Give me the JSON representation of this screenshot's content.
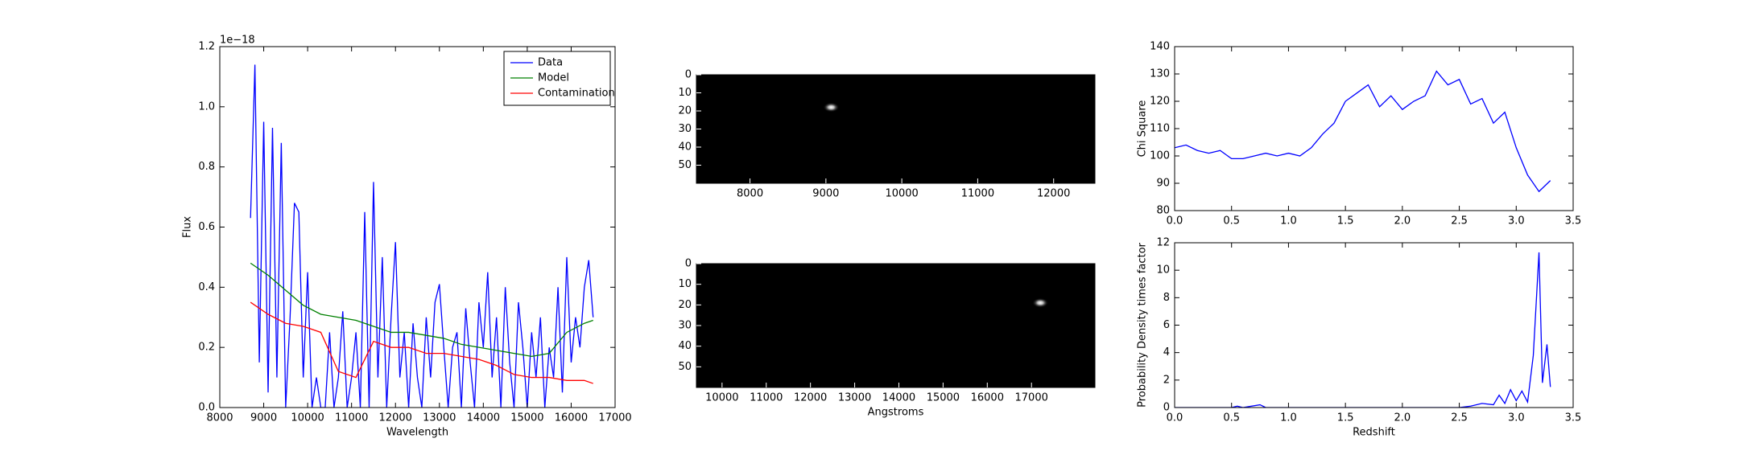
{
  "chart_data": [
    {
      "type": "line",
      "xlabel": "Wavelength",
      "ylabel": "Flux",
      "y_offset_label": "1e−18",
      "xlim": [
        8000,
        17000
      ],
      "ylim": [
        0,
        1.2
      ],
      "xticks": [
        8000,
        9000,
        10000,
        11000,
        12000,
        13000,
        14000,
        15000,
        16000,
        17000
      ],
      "yticks": [
        {
          "value": 0,
          "label": "0.0"
        },
        0.2,
        0.4,
        0.6,
        0.8,
        {
          "value": 1,
          "label": "1.0"
        },
        1.2
      ],
      "legend": "upper right",
      "series": [
        {
          "name": "Data",
          "color": "#0000ff",
          "x": [
            8700,
            8800,
            8900,
            9000,
            9100,
            9200,
            9300,
            9400,
            9500,
            9600,
            9700,
            9800,
            9900,
            10000,
            10100,
            10200,
            10300,
            10400,
            10500,
            10600,
            10700,
            10800,
            10900,
            11000,
            11100,
            11200,
            11300,
            11400,
            11500,
            11600,
            11700,
            11800,
            11900,
            12000,
            12100,
            12200,
            12300,
            12400,
            12500,
            12600,
            12700,
            12800,
            12900,
            13000,
            13100,
            13200,
            13300,
            13400,
            13500,
            13600,
            13700,
            13800,
            13900,
            14000,
            14100,
            14200,
            14300,
            14400,
            14500,
            14600,
            14700,
            14800,
            14900,
            15000,
            15100,
            15200,
            15300,
            15400,
            15500,
            15600,
            15700,
            15800,
            15900,
            16000,
            16100,
            16200,
            16300,
            16400,
            16500
          ],
          "values": [
            0.63,
            1.14,
            0.15,
            0.95,
            0.05,
            0.93,
            0.1,
            0.88,
            0,
            0.3,
            0.68,
            0.65,
            0.1,
            0.45,
            0,
            0.1,
            0,
            0,
            0.25,
            0,
            0.1,
            0.32,
            0,
            0.1,
            0.25,
            0,
            0.65,
            0,
            0.75,
            0.1,
            0.5,
            0,
            0.3,
            0.55,
            0.1,
            0.25,
            0,
            0.28,
            0.1,
            0,
            0.3,
            0.1,
            0.35,
            0.41,
            0.2,
            0,
            0.2,
            0.25,
            0,
            0.33,
            0.15,
            0,
            0.35,
            0.2,
            0.45,
            0.1,
            0.3,
            0,
            0.4,
            0.15,
            0,
            0.35,
            0.2,
            0,
            0.25,
            0.1,
            0.3,
            0,
            0.2,
            0.1,
            0.4,
            0.05,
            0.5,
            0.15,
            0.3,
            0.2,
            0.4,
            0.49,
            0.3
          ]
        },
        {
          "name": "Model",
          "color": "#008000",
          "x": [
            8700,
            9100,
            9500,
            9900,
            10300,
            10700,
            11100,
            11500,
            11900,
            12300,
            12700,
            13100,
            13500,
            13900,
            14300,
            14700,
            15100,
            15500,
            15900,
            16300,
            16500
          ],
          "values": [
            0.48,
            0.44,
            0.39,
            0.34,
            0.31,
            0.3,
            0.29,
            0.27,
            0.25,
            0.25,
            0.24,
            0.23,
            0.21,
            0.2,
            0.19,
            0.18,
            0.17,
            0.18,
            0.25,
            0.28,
            0.29
          ]
        },
        {
          "name": "Contamination",
          "color": "#ff0000",
          "x": [
            8700,
            9100,
            9500,
            9900,
            10300,
            10700,
            11100,
            11500,
            11900,
            12300,
            12700,
            13100,
            13500,
            13900,
            14300,
            14700,
            15100,
            15500,
            15900,
            16300,
            16500
          ],
          "values": [
            0.35,
            0.31,
            0.28,
            0.27,
            0.25,
            0.12,
            0.1,
            0.22,
            0.2,
            0.2,
            0.18,
            0.18,
            0.17,
            0.16,
            0.14,
            0.11,
            0.1,
            0.1,
            0.09,
            0.09,
            0.08
          ]
        }
      ]
    },
    {
      "type": "image",
      "xlim": [
        7294,
        12544
      ],
      "ylim": [
        60,
        0
      ],
      "xticks": [
        8000,
        9000,
        10000,
        11000,
        12000
      ],
      "yticks": [
        0,
        10,
        20,
        30,
        40,
        50
      ],
      "sources": [
        {
          "x": 9070,
          "y": 18
        }
      ]
    },
    {
      "type": "image",
      "xlabel": "Angstroms",
      "xlim": [
        9420,
        18435
      ],
      "ylim": [
        60,
        0
      ],
      "xticks": [
        10000,
        11000,
        12000,
        13000,
        14000,
        15000,
        16000,
        17000
      ],
      "yticks": [
        0,
        10,
        20,
        30,
        40,
        50
      ],
      "sources": [
        {
          "x": 17200,
          "y": 19
        }
      ]
    },
    {
      "type": "line",
      "ylabel": "Chi Square",
      "xlim": [
        0,
        3.5
      ],
      "ylim": [
        80,
        140
      ],
      "xticks": [
        {
          "value": 0,
          "label": "0.0"
        },
        0.5,
        {
          "value": 1,
          "label": "1.0"
        },
        1.5,
        {
          "value": 2,
          "label": "2.0"
        },
        2.5,
        {
          "value": 3,
          "label": "3.0"
        },
        3.5
      ],
      "yticks": [
        80,
        90,
        100,
        110,
        120,
        130,
        140
      ],
      "series": [
        {
          "color": "#0000ff",
          "x": [
            0,
            0.1,
            0.2,
            0.3,
            0.4,
            0.5,
            0.6,
            0.7,
            0.8,
            0.9,
            1.0,
            1.1,
            1.2,
            1.3,
            1.4,
            1.5,
            1.6,
            1.7,
            1.8,
            1.9,
            2.0,
            2.1,
            2.2,
            2.3,
            2.4,
            2.5,
            2.6,
            2.7,
            2.8,
            2.9,
            3.0,
            3.1,
            3.2,
            3.3
          ],
          "values": [
            103,
            104,
            102,
            101,
            102,
            99,
            99,
            100,
            101,
            100,
            101,
            100,
            103,
            108,
            112,
            120,
            123,
            126,
            118,
            122,
            117,
            120,
            122,
            131,
            126,
            128,
            119,
            121,
            112,
            116,
            103,
            93,
            87,
            91
          ]
        }
      ]
    },
    {
      "type": "line",
      "xlabel": "Redshift",
      "ylabel": "Probability Density times factor",
      "xlim": [
        0,
        3.5
      ],
      "ylim": [
        0,
        12
      ],
      "xticks": [
        {
          "value": 0,
          "label": "0.0"
        },
        0.5,
        {
          "value": 1,
          "label": "1.0"
        },
        1.5,
        {
          "value": 2,
          "label": "2.0"
        },
        2.5,
        {
          "value": 3,
          "label": "3.0"
        },
        3.5
      ],
      "yticks": [
        0,
        2,
        4,
        6,
        8,
        10,
        12
      ],
      "series": [
        {
          "color": "#0000ff",
          "x": [
            0,
            0.5,
            0.55,
            0.6,
            0.75,
            0.8,
            1.0,
            1.5,
            2.0,
            2.5,
            2.6,
            2.7,
            2.8,
            2.85,
            2.9,
            2.95,
            3.0,
            3.05,
            3.1,
            3.15,
            3.2,
            3.23,
            3.27,
            3.3
          ],
          "values": [
            0,
            0,
            0.1,
            0,
            0.2,
            0,
            0,
            0,
            0,
            0,
            0.1,
            0.3,
            0.2,
            0.9,
            0.3,
            1.3,
            0.5,
            1.2,
            0.4,
            3.8,
            11.3,
            1.8,
            4.6,
            1.5
          ]
        }
      ]
    }
  ]
}
